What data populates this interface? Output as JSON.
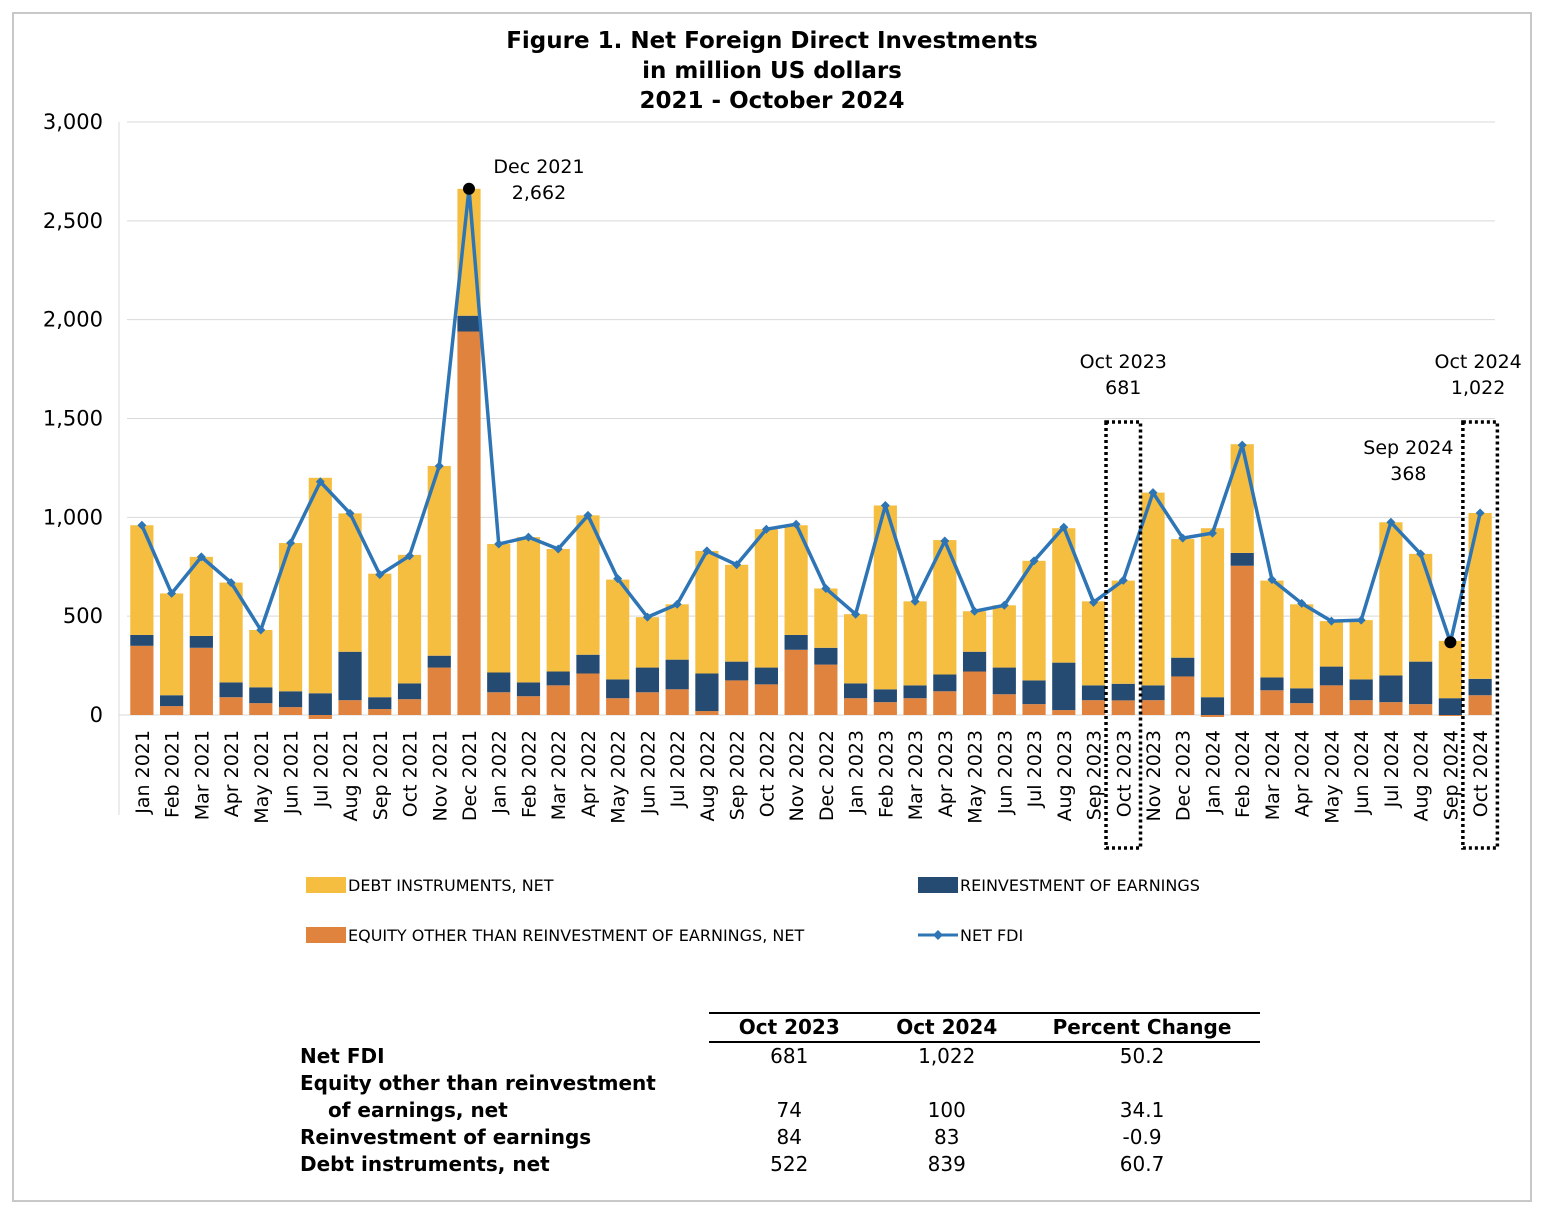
{
  "chart_data": {
    "type": "bar",
    "title_lines": [
      "Figure 1. Net Foreign Direct Investments",
      "in million US dollars",
      "2021 - October 2024"
    ],
    "categories": [
      "Jan 2021",
      "Feb 2021",
      "Mar 2021",
      "Apr 2021",
      "May 2021",
      "Jun 2021",
      "Jul 2021",
      "Aug 2021",
      "Sep 2021",
      "Oct 2021",
      "Nov 2021",
      "Dec 2021",
      "Jan 2022",
      "Feb 2022",
      "Mar 2022",
      "Apr 2022",
      "May 2022",
      "Jun 2022",
      "Jul 2022",
      "Aug 2022",
      "Sep 2022",
      "Oct 2022",
      "Nov 2022",
      "Dec 2022",
      "Jan 2023",
      "Feb 2023",
      "Mar 2023",
      "Apr 2023",
      "May 2023",
      "Jun 2023",
      "Jul 2023",
      "Aug 2023",
      "Sep 2023",
      "Oct 2023",
      "Nov 2023",
      "Dec 2023",
      "Jan 2024",
      "Feb 2024",
      "Mar 2024",
      "Apr 2024",
      "May 2024",
      "Jun 2024",
      "Jul 2024",
      "Aug 2024",
      "Sep 2024",
      "Oct 2024"
    ],
    "stacked": true,
    "ylim": [
      0,
      3000
    ],
    "yticks": [
      0,
      500,
      1000,
      1500,
      2000,
      2500,
      3000
    ],
    "ytick_labels": [
      "0",
      "500",
      "1,000",
      "1,500",
      "2,000",
      "2,500",
      "3,000"
    ],
    "grid": true,
    "legend_position": "bottom",
    "series": [
      {
        "name": "EQUITY OTHER THAN REINVESTMENT OF EARNINGS, NET",
        "kind": "bar",
        "color": "#E0833F",
        "values": [
          350,
          45,
          340,
          90,
          60,
          40,
          -20,
          75,
          30,
          80,
          240,
          1940,
          115,
          95,
          150,
          210,
          85,
          115,
          130,
          20,
          175,
          155,
          330,
          255,
          85,
          65,
          85,
          120,
          220,
          105,
          55,
          25,
          75,
          74,
          75,
          195,
          -10,
          755,
          125,
          60,
          150,
          75,
          65,
          55,
          -5,
          100
        ]
      },
      {
        "name": "REINVESTMENT OF EARNINGS",
        "kind": "bar",
        "color": "#264B73",
        "values": [
          55,
          55,
          60,
          75,
          80,
          80,
          110,
          245,
          60,
          80,
          60,
          80,
          100,
          70,
          70,
          95,
          95,
          125,
          150,
          190,
          95,
          85,
          75,
          85,
          75,
          65,
          65,
          85,
          100,
          135,
          120,
          240,
          75,
          84,
          75,
          95,
          90,
          65,
          65,
          75,
          95,
          105,
          135,
          215,
          85,
          83
        ]
      },
      {
        "name": "DEBT INSTRUMENTS, NET",
        "kind": "bar",
        "color": "#F5BE41",
        "values": [
          555,
          515,
          400,
          505,
          290,
          750,
          1090,
          700,
          625,
          650,
          960,
          642,
          650,
          735,
          620,
          705,
          505,
          255,
          280,
          620,
          490,
          700,
          555,
          300,
          350,
          930,
          425,
          680,
          205,
          315,
          605,
          680,
          425,
          522,
          975,
          600,
          855,
          550,
          490,
          425,
          230,
          300,
          775,
          545,
          290,
          839
        ]
      },
      {
        "name": "NET FDI",
        "kind": "line",
        "color": "#2E75B6",
        "values": [
          960,
          615,
          800,
          670,
          430,
          870,
          1180,
          1020,
          710,
          805,
          1260,
          2662,
          865,
          900,
          840,
          1010,
          690,
          495,
          560,
          830,
          760,
          940,
          965,
          640,
          510,
          1060,
          575,
          880,
          525,
          555,
          780,
          950,
          570,
          681,
          1125,
          895,
          920,
          1365,
          685,
          565,
          475,
          480,
          975,
          815,
          368,
          1022
        ]
      }
    ],
    "annotations": [
      {
        "category": "Dec 2021",
        "lines": [
          "Dec 2021",
          "2,662"
        ]
      },
      {
        "category": "Oct 2023",
        "lines": [
          "Oct 2023",
          "681"
        ]
      },
      {
        "category": "Sep 2024",
        "lines": [
          "Sep 2024",
          "368"
        ]
      },
      {
        "category": "Oct 2024",
        "lines": [
          "Oct 2024",
          "1,022"
        ]
      }
    ],
    "highlighted_categories": [
      "Oct 2023",
      "Oct 2024"
    ],
    "marker_points": [
      "Dec 2021",
      "Sep 2024"
    ],
    "legend_order": [
      "DEBT INSTRUMENTS, NET",
      "REINVESTMENT OF EARNINGS",
      "EQUITY OTHER THAN REINVESTMENT OF EARNINGS, NET",
      "NET FDI"
    ]
  },
  "summary_table": {
    "headers": [
      "",
      "Oct 2023",
      "Oct 2024",
      "Percent Change"
    ],
    "rows": [
      {
        "label_lines": [
          "Net FDI"
        ],
        "values": [
          "681",
          "1,022",
          "50.2"
        ]
      },
      {
        "label_lines": [
          "Equity other than reinvestment",
          "of earnings, net"
        ],
        "values": [
          "74",
          "100",
          "34.1"
        ]
      },
      {
        "label_lines": [
          "Reinvestment of earnings"
        ],
        "values": [
          "84",
          "83",
          "-0.9"
        ]
      },
      {
        "label_lines": [
          "Debt instruments, net"
        ],
        "values": [
          "522",
          "839",
          "60.7"
        ]
      }
    ]
  }
}
